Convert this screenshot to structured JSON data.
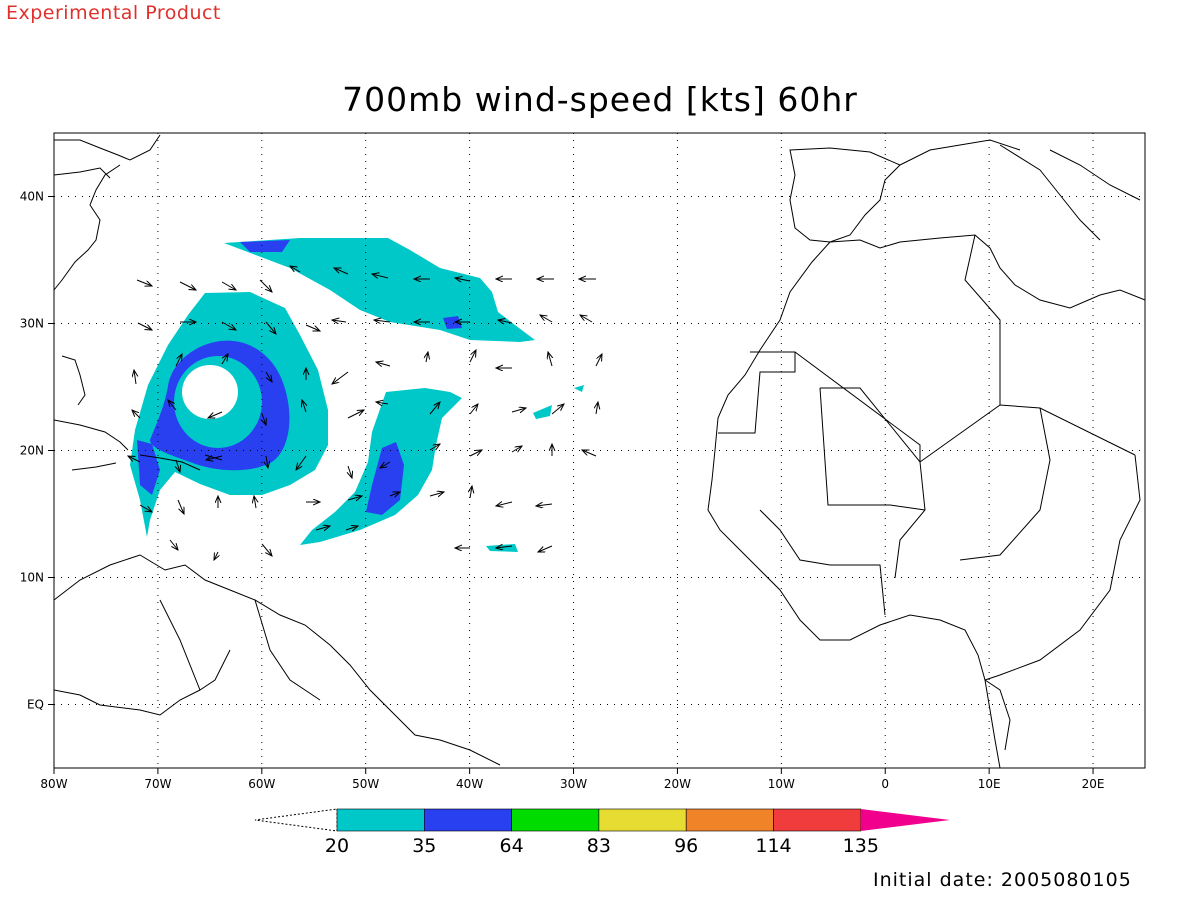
{
  "header": {
    "product_label": "Experimental Product",
    "title": "700mb wind-speed [kts] 60hr",
    "initial_date": "Initial date: 2005080105"
  },
  "map": {
    "lon_range": [
      -80,
      25
    ],
    "lat_range": [
      -5,
      45
    ],
    "lon_ticks": [
      {
        "lon": -80,
        "label": "80W"
      },
      {
        "lon": -70,
        "label": "70W"
      },
      {
        "lon": -60,
        "label": "60W"
      },
      {
        "lon": -50,
        "label": "50W"
      },
      {
        "lon": -40,
        "label": "40W"
      },
      {
        "lon": -30,
        "label": "30W"
      },
      {
        "lon": -20,
        "label": "20W"
      },
      {
        "lon": -10,
        "label": "10W"
      },
      {
        "lon": 0,
        "label": "0"
      },
      {
        "lon": 10,
        "label": "10E"
      },
      {
        "lon": 20,
        "label": "20E"
      }
    ],
    "lat_ticks": [
      {
        "lat": 40,
        "label": "40N"
      },
      {
        "lat": 30,
        "label": "30N"
      },
      {
        "lat": 20,
        "label": "20N"
      },
      {
        "lat": 10,
        "label": "10N"
      },
      {
        "lat": 0,
        "label": "EQ"
      }
    ],
    "grid": "dotted",
    "coastline_color": "#000000"
  },
  "colorbar": {
    "labels": [
      "20",
      "35",
      "64",
      "83",
      "96",
      "114",
      "135"
    ],
    "colors": [
      "#00c8c8",
      "#2840f0",
      "#00dc00",
      "#e6dc32",
      "#f08228",
      "#f03c3c",
      "#f0008c"
    ],
    "below_color": "#ffffff"
  }
}
